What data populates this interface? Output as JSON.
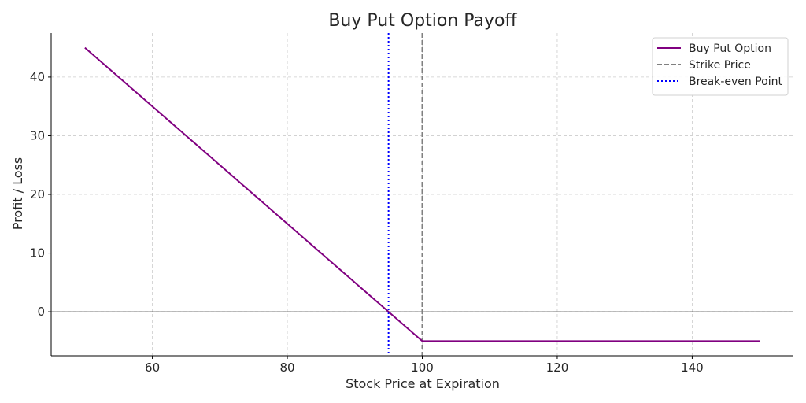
{
  "chart_data": {
    "type": "line",
    "title": "Buy Put Option Payoff",
    "xlabel": "Stock Price at Expiration",
    "ylabel": "Profit / Loss",
    "xlim": [
      45,
      155
    ],
    "ylim": [
      -7.5,
      47.5
    ],
    "xticks": [
      60,
      80,
      100,
      120,
      140
    ],
    "yticks": [
      0,
      10,
      20,
      30,
      40
    ],
    "grid": true,
    "legend_position": "top-right",
    "series": [
      {
        "name": "Buy Put Option",
        "kind": "line",
        "style": "solid",
        "color": "#800080",
        "x": [
          50,
          100,
          150
        ],
        "y": [
          45,
          -5,
          -5
        ]
      },
      {
        "name": "Strike Price",
        "kind": "vline",
        "style": "dashed",
        "color": "#808080",
        "x": 100
      },
      {
        "name": "Break-even Point",
        "kind": "vline",
        "style": "dotted",
        "color": "#0000ff",
        "x": 95
      }
    ],
    "hlines": [
      {
        "y": 0,
        "color": "#000000"
      }
    ]
  }
}
